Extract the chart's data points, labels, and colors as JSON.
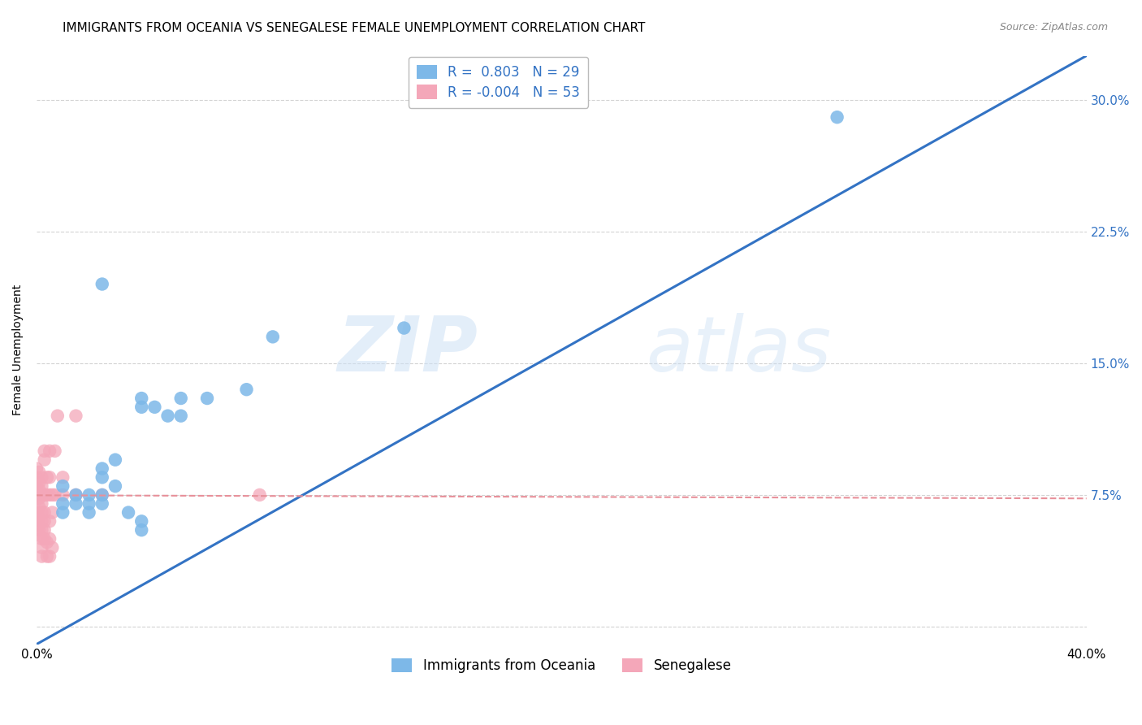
{
  "title": "IMMIGRANTS FROM OCEANIA VS SENEGALESE FEMALE UNEMPLOYMENT CORRELATION CHART",
  "source": "Source: ZipAtlas.com",
  "ylabel": "Female Unemployment",
  "xlim": [
    0.0,
    0.4
  ],
  "ylim": [
    -0.01,
    0.325
  ],
  "xticks": [
    0.0,
    0.1,
    0.2,
    0.3,
    0.4
  ],
  "xtick_labels": [
    "0.0%",
    "",
    "",
    "",
    "40.0%"
  ],
  "yticks": [
    0.0,
    0.075,
    0.15,
    0.225,
    0.3
  ],
  "ytick_labels_right": [
    "",
    "7.5%",
    "15.0%",
    "22.5%",
    "30.0%"
  ],
  "legend_entries": [
    {
      "label": "R =  0.803   N = 29",
      "color": "#aac4e8"
    },
    {
      "label": "R = -0.004   N = 53",
      "color": "#f4a7b9"
    }
  ],
  "legend_labels_bottom": [
    "Immigrants from Oceania",
    "Senegalese"
  ],
  "blue_color": "#7db8e8",
  "pink_color": "#f4a7b9",
  "line_blue": "#3373c4",
  "line_pink": "#e8909a",
  "watermark_zip": "ZIP",
  "watermark_atlas": "atlas",
  "grid_color": "#c8c8c8",
  "background_color": "#ffffff",
  "title_fontsize": 11,
  "axis_label_fontsize": 10,
  "tick_fontsize": 11,
  "source_fontsize": 9,
  "blue_scatter": [
    [
      0.025,
      0.195
    ],
    [
      0.055,
      0.13
    ],
    [
      0.065,
      0.13
    ],
    [
      0.08,
      0.135
    ],
    [
      0.09,
      0.165
    ],
    [
      0.04,
      0.13
    ],
    [
      0.045,
      0.125
    ],
    [
      0.04,
      0.125
    ],
    [
      0.05,
      0.12
    ],
    [
      0.055,
      0.12
    ],
    [
      0.03,
      0.095
    ],
    [
      0.025,
      0.09
    ],
    [
      0.025,
      0.085
    ],
    [
      0.03,
      0.08
    ],
    [
      0.025,
      0.075
    ],
    [
      0.025,
      0.07
    ],
    [
      0.02,
      0.075
    ],
    [
      0.02,
      0.07
    ],
    [
      0.02,
      0.065
    ],
    [
      0.015,
      0.075
    ],
    [
      0.015,
      0.07
    ],
    [
      0.01,
      0.08
    ],
    [
      0.01,
      0.07
    ],
    [
      0.01,
      0.065
    ],
    [
      0.035,
      0.065
    ],
    [
      0.04,
      0.06
    ],
    [
      0.04,
      0.055
    ],
    [
      0.14,
      0.17
    ],
    [
      0.305,
      0.29
    ]
  ],
  "pink_scatter": [
    [
      0.0,
      0.09
    ],
    [
      0.0,
      0.085
    ],
    [
      0.0,
      0.08
    ],
    [
      0.001,
      0.088
    ],
    [
      0.001,
      0.082
    ],
    [
      0.001,
      0.078
    ],
    [
      0.001,
      0.073
    ],
    [
      0.001,
      0.068
    ],
    [
      0.001,
      0.065
    ],
    [
      0.001,
      0.062
    ],
    [
      0.001,
      0.058
    ],
    [
      0.001,
      0.055
    ],
    [
      0.001,
      0.052
    ],
    [
      0.002,
      0.085
    ],
    [
      0.002,
      0.08
    ],
    [
      0.002,
      0.075
    ],
    [
      0.002,
      0.07
    ],
    [
      0.002,
      0.065
    ],
    [
      0.002,
      0.06
    ],
    [
      0.002,
      0.055
    ],
    [
      0.002,
      0.05
    ],
    [
      0.002,
      0.045
    ],
    [
      0.002,
      0.04
    ],
    [
      0.003,
      0.1
    ],
    [
      0.003,
      0.095
    ],
    [
      0.003,
      0.075
    ],
    [
      0.003,
      0.065
    ],
    [
      0.003,
      0.06
    ],
    [
      0.003,
      0.055
    ],
    [
      0.003,
      0.05
    ],
    [
      0.004,
      0.085
    ],
    [
      0.004,
      0.075
    ],
    [
      0.004,
      0.048
    ],
    [
      0.004,
      0.04
    ],
    [
      0.005,
      0.1
    ],
    [
      0.005,
      0.085
    ],
    [
      0.005,
      0.075
    ],
    [
      0.005,
      0.06
    ],
    [
      0.005,
      0.05
    ],
    [
      0.005,
      0.04
    ],
    [
      0.006,
      0.075
    ],
    [
      0.006,
      0.065
    ],
    [
      0.006,
      0.045
    ],
    [
      0.007,
      0.1
    ],
    [
      0.007,
      0.075
    ],
    [
      0.008,
      0.12
    ],
    [
      0.01,
      0.085
    ],
    [
      0.01,
      0.075
    ],
    [
      0.015,
      0.075
    ],
    [
      0.015,
      0.12
    ],
    [
      0.025,
      0.075
    ],
    [
      0.085,
      0.075
    ],
    [
      0.0,
      0.075
    ]
  ],
  "blue_line_x": [
    0.0,
    0.4
  ],
  "blue_line_y": [
    -0.01,
    0.325
  ],
  "pink_line_x": [
    0.0,
    0.4
  ],
  "pink_line_y": [
    0.0748,
    0.073
  ]
}
